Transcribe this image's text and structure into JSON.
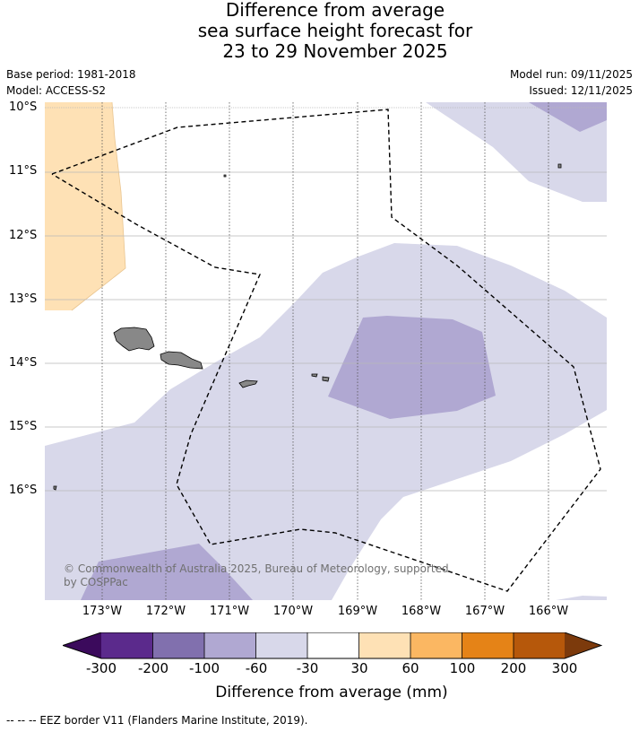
{
  "title": {
    "line1": "Difference from average",
    "line2": "sea surface height forecast for",
    "line3": "23 to 29 November 2025"
  },
  "meta": {
    "base_period": "Base period: 1981-2018",
    "model": "Model: ACCESS-S2",
    "model_run": "Model run: 09/11/2025",
    "issued": "Issued: 12/11/2025"
  },
  "axes": {
    "lat_labels": [
      "10°S",
      "11°S",
      "12°S",
      "13°S",
      "14°S",
      "15°S",
      "16°S"
    ],
    "lon_labels": [
      "173°W",
      "172°W",
      "171°W",
      "170°W",
      "169°W",
      "168°W",
      "167°W",
      "166°W"
    ]
  },
  "copyright": "© Commonwealth of Australia 2025, Bureau of Meteorology, supported by COSPPac",
  "colorbar": {
    "title": "Difference from average (mm)",
    "ticks": [
      "-300",
      "-200",
      "-100",
      "-60",
      "-30",
      "30",
      "60",
      "100",
      "200",
      "300"
    ],
    "colors": [
      "#3b0a5c",
      "#5b2a8c",
      "#8170ae",
      "#b0a8d2",
      "#d8d8ea",
      "#ffffff",
      "#fee1b5",
      "#fbb762",
      "#e58317",
      "#b6580b",
      "#7c3a0c"
    ]
  },
  "map_colors": {
    "band_minus_60_30": "#d8d8ea",
    "band_minus_100_60": "#b0a8d2",
    "band_30_60": "#fee1b5",
    "land": "#888888"
  },
  "footer": "--  --  -- EEZ border V11 (Flanders Marine Institute, 2019)."
}
